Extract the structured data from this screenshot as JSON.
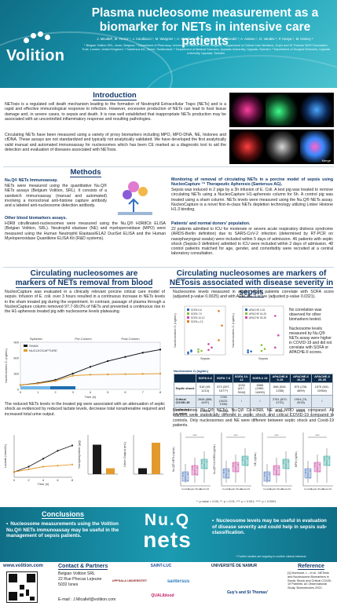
{
  "header": {
    "logo": "Volition",
    "title": "Plasma nucleosome measurement as a biomarker for NETs in intensive care patients",
    "authors": "J. Micallef¹, M. Ferraz ¹, J. Candiracci ¹, M. Wargnier ¹, A. Vassiliveva ¹, L. Morisson ², I. Ghandiri ³, A. Assoso ⁴, O. Vandes ⁵, P. Hanya ⁶, M. Harvey ⁶",
    "affiliations": "¹ Belgian Volition SRL, Isnes, Belgium; ² Department of Pharmacy, University of Namur, Namur, Belgium; ³ Department of Critical Care Medicine, Guy's and St Thomas' NHS Foundation Trust, London, United Kingdom; ⁴ Santersus AG, Zurich, Switzerland; ⁵ Department of Medical Sciences, Uppsala University, Uppsala, Sweden; ⁶ Department of Surgical Sciences, Uppsala University, Uppsala, Sweden"
  },
  "introduction": {
    "heading": "Introduction",
    "p1": "NETosis is a regulated cell death mechanism leading to the formation of Neutrophil Extracellular Traps (NETs) and is a rapid and effective immunological response to infection. However, excessive production of NETs can lead to host tissue damage and, in severe cases, to sepsis and death. It is now well established that inappropriate NETs production may be associated with an uncontrolled inflammatory response and resulting pathologies.",
    "p2": "Circulating NETs have been measured using a variety of proxy biomarkers including MPO, MPO-DNA, NE, histones and cfDNA. These assays are not standardized and typically not analytically validated. We have developed the first analytically valid manual and automated immunoassay for nucleosomes which has been CE marked as a diagnostic tool to aid the detection and evaluation of diseases associated with NETosis.",
    "image_label": "Merge",
    "image_caption": "H3.1 nucleosome, NET, and neutrophil staining"
  },
  "methods": {
    "heading": "Methods",
    "assay_title": "Nu.Q® NETs Immunoassay.",
    "assay_text": "NETs were measured using the quantitative Nu.Q® NETs assays (Belgium Volition, SRL). It consists of a sandwich immunoassay (manual and automated) involving a monoclonal anti-histone capture antibody and a labeled anti-nucleosome detection antibody.",
    "other_title": "Other blood biomarkers assays.",
    "other_text": "H3R8 citrullinated-nucleosomes were measured using the Nu.Q® H3R8Cit ELISA (Belgian Volition, SRL). Neutrophil elastase (NE) and myeloperoxidase (MPO) were measured using the Human Neutrophil Elastase/ELA2 DuoSet ELISA and the Human Myeloperoxidase Quantikine ELISA Kit (R&D systems).",
    "monitoring_title": "Monitoring of removal of circulating NETs in a porcine model of sepsis using NucleoCapture ™ Therapeutic Apheresis (Santersus AG).",
    "monitoring_text": "Sepsis was induced in 2 pigs by a 3h infusion of E. Coli. A test pig was treated to remove circulating NETs using a NucleoCapture H1-apheresis column for 5h. A control pig was treated using a sham column. NETs levels were measured using the Nu.Q® NETs assay. NucleoCapture is a novel first-in-class NETs depletion technology utilizing Linker Histone H1.3 binding.",
    "patients_title": "Patients' and normal donors' population.",
    "patients_text": "22 patients admitted to ICU for moderate or severe acute respiratory distress syndrome (ARDS-Berlin definition) due to SARS-CoV-2 infection (determined by RT-PCR on nasopharyngeal swabs) were included within 5 days of admission. 46 patients with septic shock (Sepsis-3 definition) admitted to ICU were included within 2 days of admission. 48 control patients matched for age, gender, and comorbidity were recruited at a central laboratory consultation."
  },
  "left_section": {
    "heading1": "Circulating nucleosomes are",
    "heading2": "markers of NETs removal from blood",
    "p1": "NucleoCapture was evaluated in a clinically relevant porcine critical care model of sepsis. Infusion of E. coli. over 3 hours resulted in a continuous increase in NETs levels in the sham treated pig during the experiment. In contrast, passage of plasma through a NucleoCapture column removed 97.7-99.0% of NETs and prevented a continuous rise in the H1-apheresis treated pig with nucleosome levels plateauing.",
    "p2": "The reduced NETs levels in the treated pig were associated with an attenuation of septic shock as evidenced by reduced lactate levels, decrease total noradrenaline required and increased total urine output."
  },
  "right_section": {
    "heading1": "Circulating nucleosomes are markers of",
    "heading2": "NETosis associated with disease severity in sepsis",
    "p1": "Nucleosome levels measured in septic shock patients correlate with SOFA score (adjusted p-value 0.0025) and with APACHE II score (adjusted p-value 0.0321).",
    "side1": "No correlation was observed for other biomarkers tested.",
    "side2": "Nucleosome levels measured by Nu.Q® NETs assay were higher in COVID-19 and did not correlate with SOFA or APACHE-II scores.",
    "p2": "Nucleosomes (Nu.Q® NETs), Nu.Q® Cit-H3R8, NE and MPO were compared. All markers were statistically different in septic shock and critical COVID-19 compared to controls. Only nucleosomes and NE were different between septic shock and Covid-19 patients.",
    "pvals": "*: p-value < 0.05; **: p < 0.01; ***: p < 0.001; ****: p < 0.0001"
  },
  "table": {
    "title": "Nucleosome Cᵢ (ng/mL)",
    "headers": [
      "",
      "SOFA 0-6",
      "SOFA 7-9",
      "SOFA 10-12",
      "SOFA ≥ 13",
      "APACHE-II 0-15",
      "APACHE-II 16-25",
      "APACHE-II 25-35"
    ],
    "rows": [
      [
        "Septic shock",
        "518 (49-1214)",
        "673 (397-1577*)",
        "1033 (617-3044)",
        "8386 (1960-14490)",
        "666 (526-1258)",
        "870 (238-4899)",
        "1575 (641-10964)"
      ],
      [
        "Critical COVID-19",
        "2648 (888-4497)",
        "1769 (1623-1939)",
        "/",
        "/",
        "2761 (870-4721)",
        "1904 (76-4015)",
        "/"
      ],
      [
        "corrected p_value",
        "0.0025",
        "0.0025",
        "/",
        "/",
        "0.0321",
        "0.0321",
        "/"
      ]
    ]
  },
  "chart_data": [
    {
      "type": "line",
      "title": "",
      "xlabel": "Time (h)",
      "ylabel": "Nucleosomes Cᵢ (ng/mL)",
      "phases": [
        "Systemic",
        "Pre-Column",
        "Post-Column"
      ],
      "x": [
        0,
        1,
        2,
        3,
        4,
        5,
        6,
        7,
        8
      ],
      "series": [
        {
          "name": "SHAM",
          "color": "#1a1a1a",
          "values": [
            80,
            120,
            180,
            300,
            430,
            540,
            620,
            700,
            760
          ]
        },
        {
          "name": "NUCLEOCAPTURE",
          "color": "#e39a2c",
          "values": [
            80,
            110,
            160,
            260,
            280,
            285,
            290,
            295,
            300
          ]
        }
      ],
      "ylim": [
        0,
        900
      ]
    },
    {
      "type": "line",
      "xlabel": "Time (h)",
      "ylabel": "Lactate (mmol/L)",
      "x": [
        0,
        2,
        4,
        6,
        8
      ],
      "series": [
        {
          "name": "SHAM",
          "values": [
            1,
            2,
            3.5,
            5,
            6
          ]
        },
        {
          "name": "NUCLEOCAPTURE",
          "values": [
            1,
            1.5,
            2,
            2.2,
            2.4
          ]
        }
      ],
      "ylim": [
        0,
        8
      ]
    },
    {
      "type": "bar",
      "ylabel": "Norepinephrine (μg)",
      "categories": [
        "SHAM",
        "NUCLEOCAPTURE"
      ],
      "values": [
        750,
        150
      ],
      "ylim": [
        0,
        1000
      ]
    },
    {
      "type": "bar",
      "ylabel": "Urine Output (mL)",
      "categories": [
        "SHAM",
        "NUCLEOCAPTURE"
      ],
      "values": [
        150,
        800
      ],
      "ylim": [
        0,
        1000
      ]
    },
    {
      "type": "scatter",
      "xlabel": "Sepsis",
      "ylabel": "Nucleosomes Cᵢ (ng/mL)",
      "series": [
        {
          "name": "SOFA 0-6",
          "color": "#2b6cc4",
          "values": [
            500,
            700,
            300,
            900
          ]
        },
        {
          "name": "SOFA 7-9",
          "color": "#8bbf3d",
          "values": [
            600,
            800,
            1100
          ]
        },
        {
          "name": "SOFA 10-12",
          "color": "#d24aa8",
          "values": [
            1000,
            1500,
            2200
          ]
        },
        {
          "name": "SOFA ≥ 13",
          "color": "#e27b24",
          "values": [
            3000,
            6000,
            9000
          ]
        }
      ]
    },
    {
      "type": "scatter",
      "xlabel": "Sepsis",
      "ylabel": "Nucleosomes Cᵢ (ng/mL)",
      "series": [
        {
          "name": "APACHE 0-15",
          "color": "#2b6cc4",
          "values": [
            500,
            700,
            900
          ]
        },
        {
          "name": "APACHE 16-25",
          "color": "#8bbf3d",
          "values": [
            800,
            1200,
            2000
          ]
        },
        {
          "name": "APACHE 25-35",
          "color": "#d24aa8",
          "values": [
            1500,
            4000,
            8000
          ]
        }
      ]
    },
    {
      "type": "box",
      "categories": [
        "Control",
        "Septic Shock",
        "Covid-19"
      ],
      "panels": [
        {
          "ylabel": "Nu.Q® NETs (ng/mL)"
        },
        {
          "ylabel": "Nu.Q® Cit-H3R8 (ng/mL)"
        },
        {
          "ylabel": "NE (ng/mL)"
        },
        {
          "ylabel": "MPO (ng/mL)"
        }
      ]
    }
  ],
  "conclusions": {
    "heading": "Conclusions",
    "left": "Nucleosome measurements using the Volition Nu.Q® NETs immunoassay may be useful in the management of sepsis patients.",
    "brand_top": "Nu.Q",
    "brand_bottom": "nets",
    "right": "Nucleosome levels may be useful in evaluation of disease severity and could help in sepsis sub-classification.",
    "footnote": "* Further studies are ongoing to confirm clinical interests"
  },
  "footer": {
    "website": "www.volition.com",
    "contact_heading": "Contact & Partners",
    "contact_lines": [
      "Belgian Volition SRL",
      "22 Rue Phocas Lejeune",
      "5032 Isnes"
    ],
    "email": "E-mail : J.Micallef@volition.com",
    "partners": [
      "SAINT-LUC",
      "UPPSALA UNIVERSITET",
      "santersus",
      "UNIVERSITÉ DE NAMUR",
      "QUALIblood",
      "Guy's and St Thomas'"
    ],
    "reference_heading": "Reference",
    "reference_text": "[1] Morimont, L., et al., NETosis and Nucleosome Biomarkers in Septic Shock and Critical COVID-19 Patients: An Observational Study. Biomolecules 2022."
  }
}
